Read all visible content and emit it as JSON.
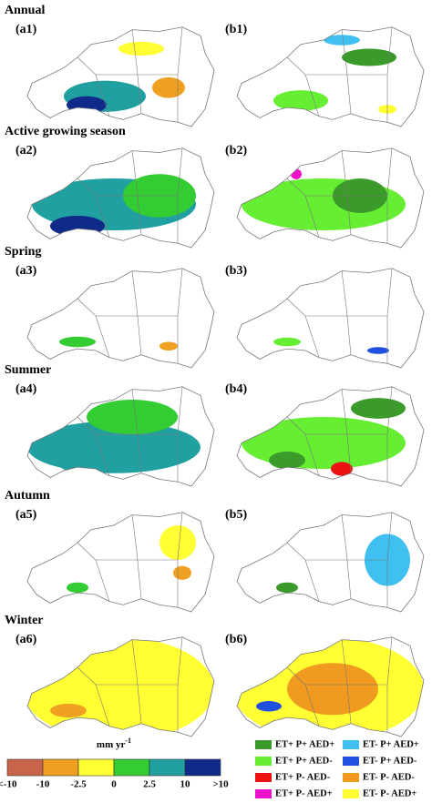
{
  "sections": [
    {
      "title": "Annual",
      "panels": [
        "(a1)",
        "(b1)"
      ]
    },
    {
      "title": "Active growing season",
      "panels": [
        "(a2)",
        "(b2)"
      ]
    },
    {
      "title": "Spring",
      "panels": [
        "(a3)",
        "(b3)"
      ]
    },
    {
      "title": "Summer",
      "panels": [
        "(a4)",
        "(b4)"
      ]
    },
    {
      "title": "Autumn",
      "panels": [
        "(a5)",
        "(b5)"
      ]
    },
    {
      "title": "Winter",
      "panels": [
        "(a6)",
        "(b6)"
      ]
    }
  ],
  "colorbar": {
    "unit": "mm yr",
    "unit_sup": "-1",
    "colors": [
      "#c8644a",
      "#f0a020",
      "#ffff33",
      "#33cc33",
      "#20a0a0",
      "#102a8a"
    ],
    "labels": [
      "<-10",
      "-10",
      "-2.5",
      "0",
      "2.5",
      "10",
      ">10"
    ]
  },
  "legend": [
    {
      "name": "ET+ P+ AED+",
      "color": "#3a9a2a"
    },
    {
      "name": "ET- P+ AED+",
      "color": "#40c0f0"
    },
    {
      "name": "ET+ P+ AED-",
      "color": "#66ee33"
    },
    {
      "name": "ET- P+ AED-",
      "color": "#2050e0"
    },
    {
      "name": "ET+ P- AED-",
      "color": "#ee1111"
    },
    {
      "name": "ET- P- AED-",
      "color": "#f09a20"
    },
    {
      "name": "ET+ P- AED+",
      "color": "#ee11cc"
    },
    {
      "name": "ET- P- AED+",
      "color": "#ffff33"
    }
  ]
}
